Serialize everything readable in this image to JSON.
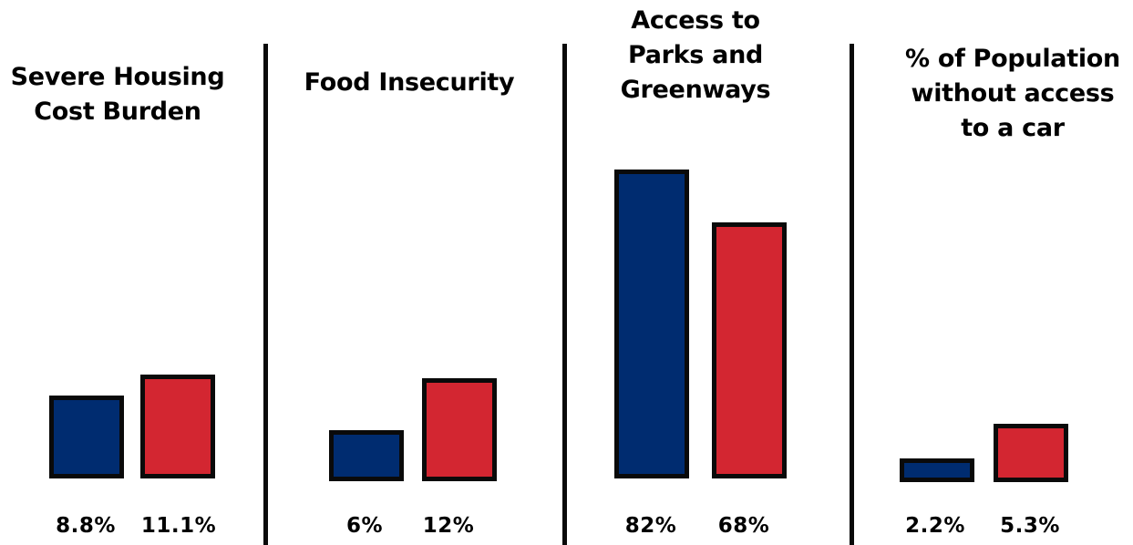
{
  "colors": {
    "series_a": "#002c70",
    "series_b": "#d32631",
    "outline": "#0a0a0a"
  },
  "chart_data": [
    {
      "type": "bar",
      "title": "Severe Housing Cost Burden",
      "unit": "%",
      "values": [
        8.8,
        11.1
      ],
      "labels": [
        "8.8%",
        "11.1%"
      ]
    },
    {
      "type": "bar",
      "title": "Food Insecurity",
      "unit": "%",
      "values": [
        6,
        12
      ],
      "labels": [
        "6%",
        "12%"
      ]
    },
    {
      "type": "bar",
      "title": "Access to Parks and Greenways",
      "unit": "%",
      "values": [
        82,
        68
      ],
      "labels": [
        "82%",
        "68%"
      ]
    },
    {
      "type": "bar",
      "title": "% of Population without access to a car",
      "unit": "%",
      "values": [
        2.2,
        5.3
      ],
      "labels": [
        "2.2%",
        "5.3%"
      ]
    }
  ]
}
